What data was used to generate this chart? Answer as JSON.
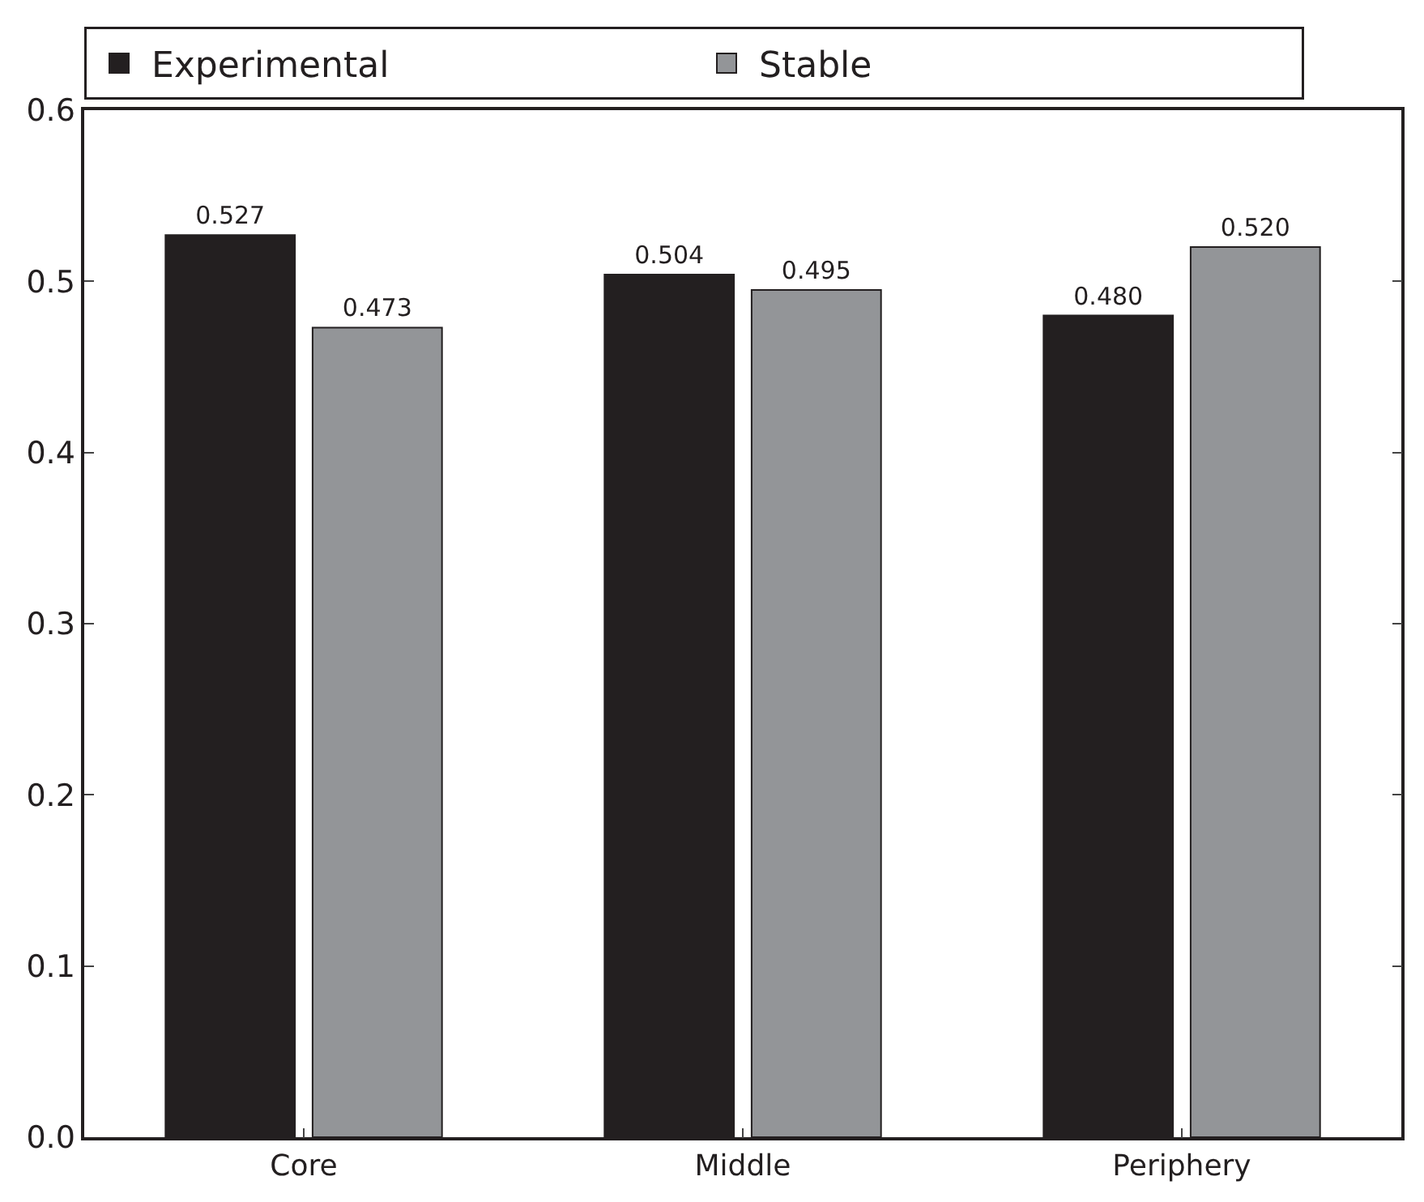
{
  "chart_data": {
    "type": "bar",
    "categories": [
      "Core",
      "Middle",
      "Periphery"
    ],
    "series": [
      {
        "name": "Experimental",
        "color": "#231f20",
        "values": [
          0.527,
          0.504,
          0.48
        ],
        "value_labels": [
          "0.527",
          "0.504",
          "0.480"
        ]
      },
      {
        "name": "Stable",
        "color": "#939598",
        "values": [
          0.473,
          0.495,
          0.52
        ],
        "value_labels": [
          "0.473",
          "0.495",
          "0.520"
        ]
      }
    ],
    "ylim": [
      0.0,
      0.6
    ],
    "yticks": [
      {
        "value": 0.0,
        "label": "0.0"
      },
      0.1,
      0.2,
      0.3,
      0.4,
      0.5,
      0.6
    ],
    "legend": "top"
  }
}
